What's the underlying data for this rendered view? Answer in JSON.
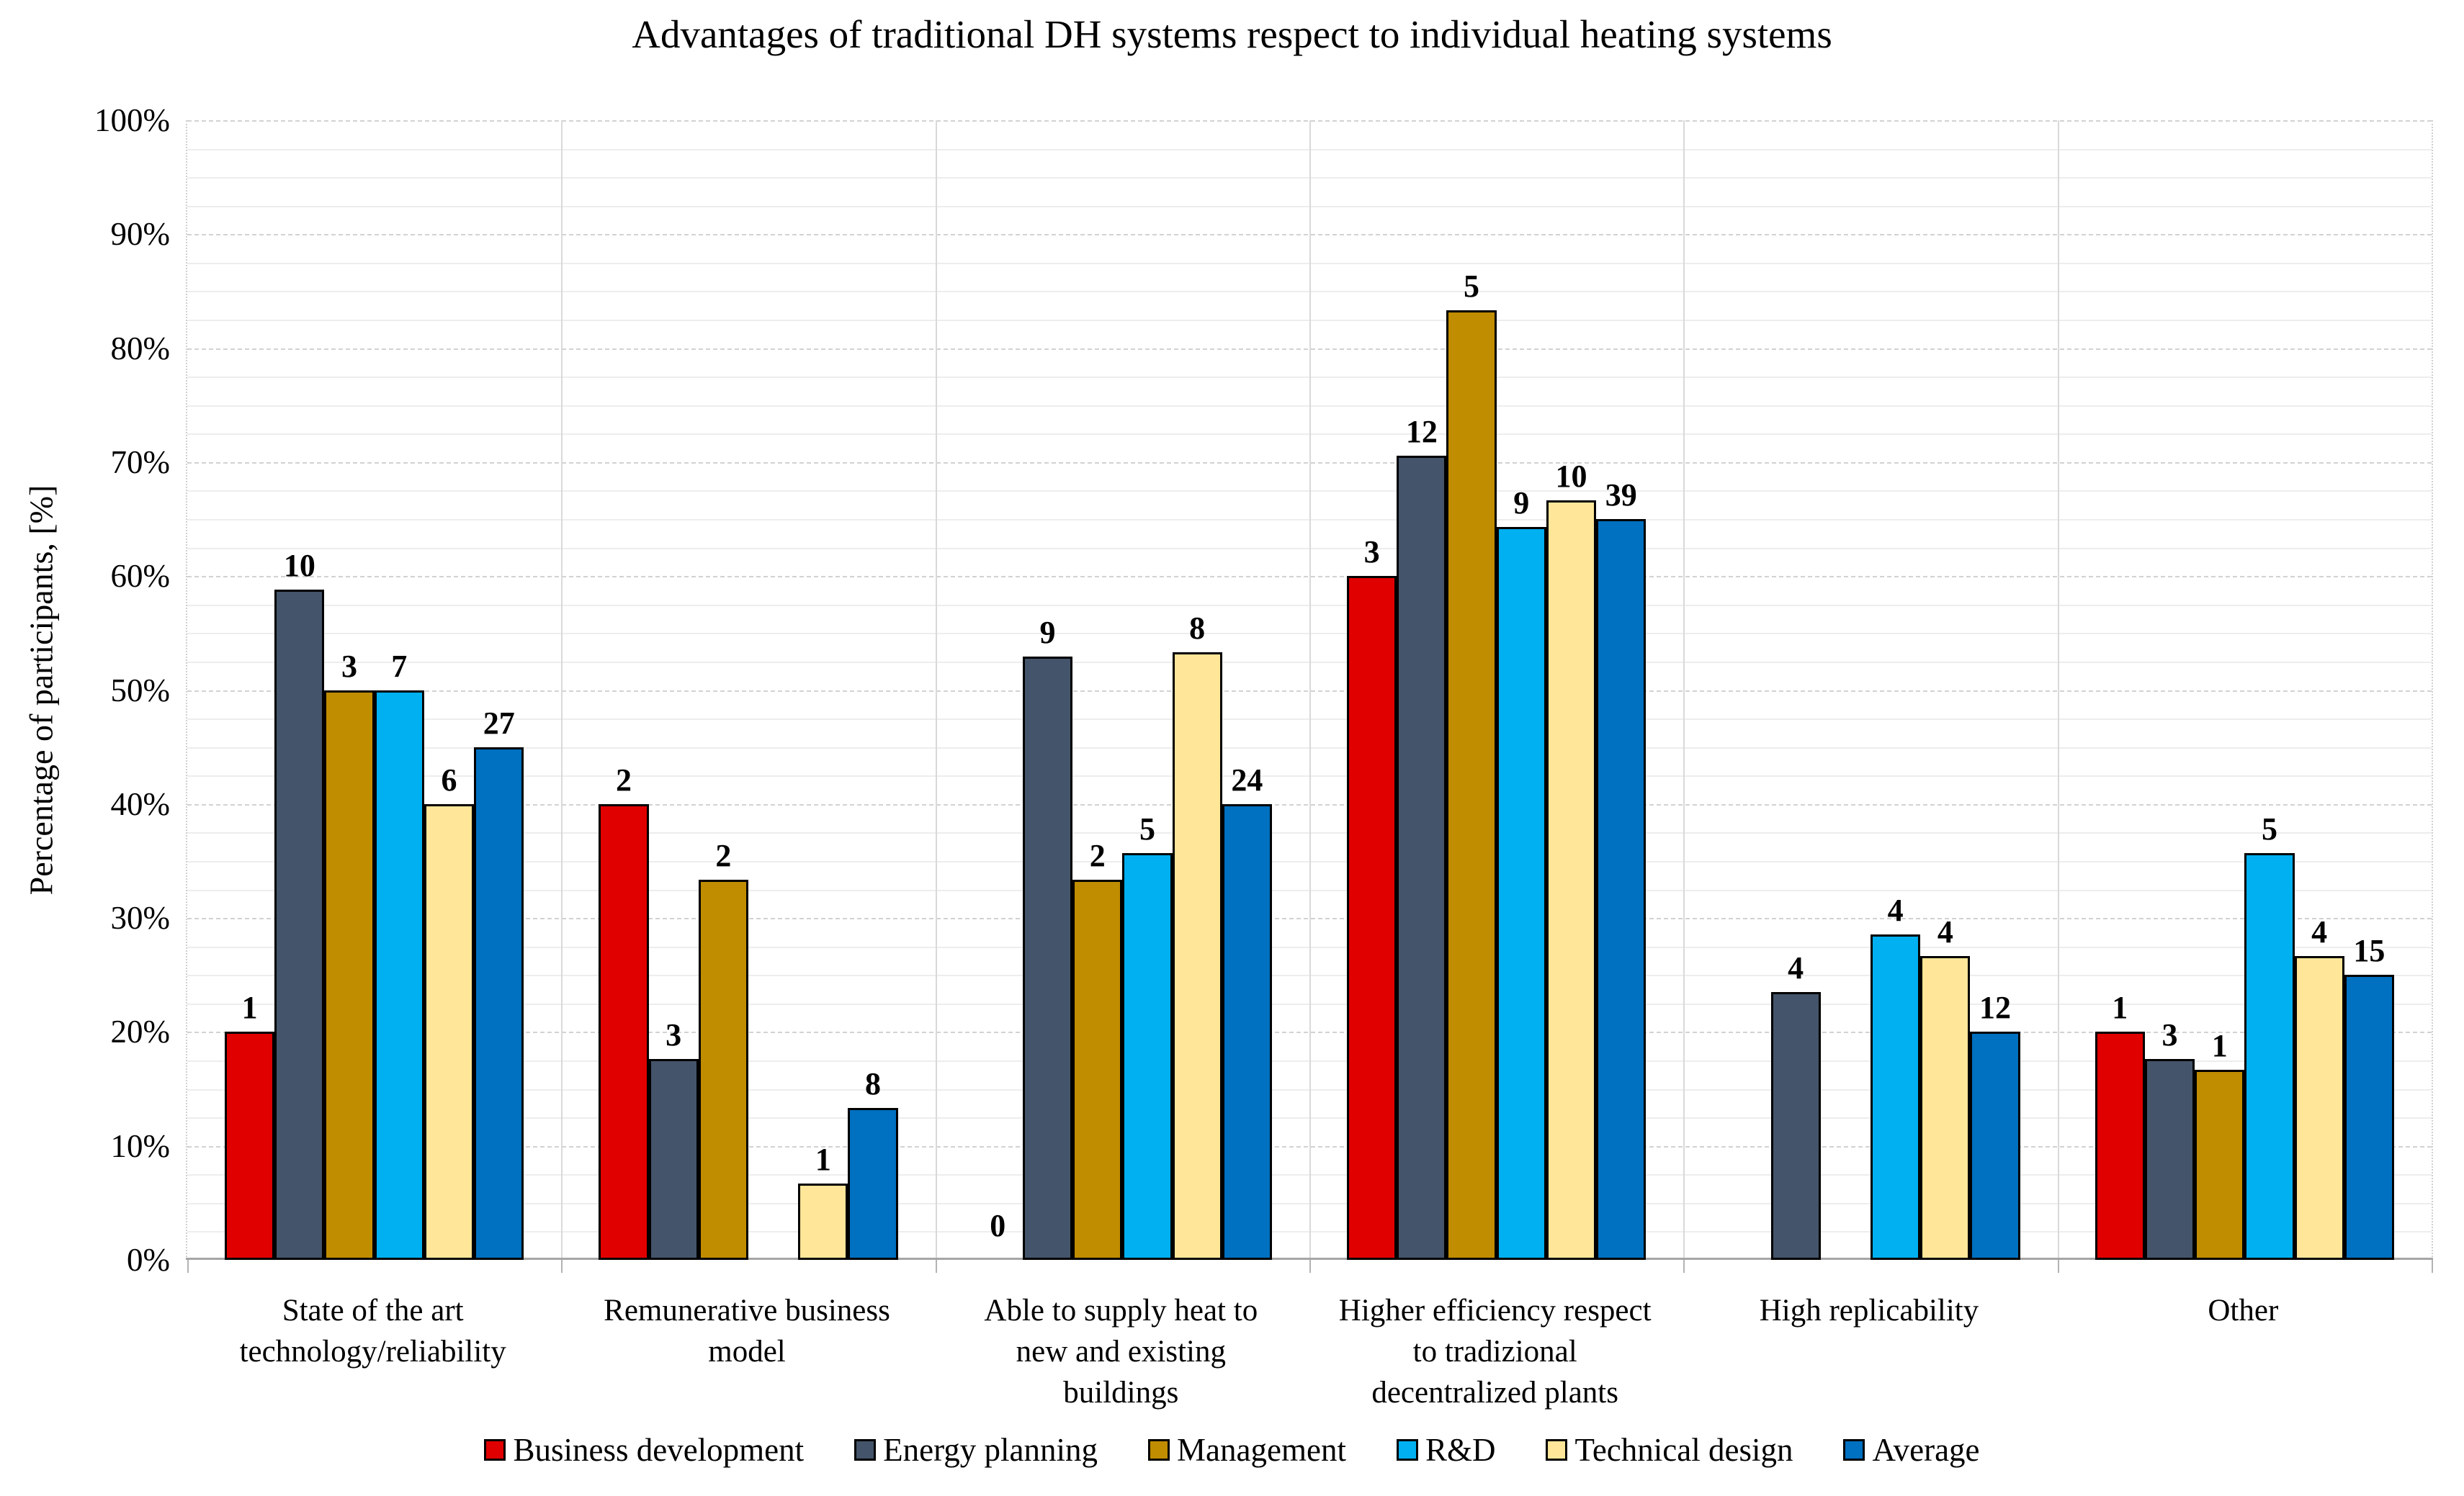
{
  "chart_data": {
    "type": "bar",
    "title": "Advantages of traditional DH systems respect to individual heating systems",
    "ylabel": "Percentage of participants, [%]",
    "xlabel": "",
    "ylim": [
      0,
      100
    ],
    "y_major_step_percent": 10,
    "y_minor_step_percent": 2.5,
    "y_tick_labels": [
      "0%",
      "10%",
      "20%",
      "30%",
      "40%",
      "50%",
      "60%",
      "70%",
      "80%",
      "90%",
      "100%"
    ],
    "grid": "horizontal major dashed gridlines every 10%, minor light gridlines every 2.5%, vertical category separators",
    "legend_position": "bottom",
    "categories": [
      "State of the art\ntechnology/reliability",
      "Remunerative business\nmodel",
      "Able to supply heat to\nnew and existing\nbuildings",
      "Higher efficiency respect\nto tradizional\ndecentralized plants",
      "High replicability",
      "Other"
    ],
    "series": [
      {
        "name": "Business development",
        "color": "#E00000",
        "count_labels": [
          "1",
          "2",
          "0",
          "3",
          "",
          "1"
        ],
        "percent_values": [
          20,
          40,
          0,
          60,
          0,
          20
        ]
      },
      {
        "name": "Energy planning",
        "color": "#44546A",
        "count_labels": [
          "10",
          "3",
          "9",
          "12",
          "4",
          "3"
        ],
        "percent_values": [
          58.82,
          17.65,
          52.94,
          70.59,
          23.53,
          17.65
        ]
      },
      {
        "name": "Management",
        "color": "#C08C00",
        "count_labels": [
          "3",
          "2",
          "2",
          "5",
          "",
          "1"
        ],
        "percent_values": [
          50,
          33.33,
          33.33,
          83.33,
          0,
          16.67
        ]
      },
      {
        "name": "R&D",
        "color": "#00B0F0",
        "count_labels": [
          "7",
          "",
          "5",
          "9",
          "4",
          "5"
        ],
        "percent_values": [
          50,
          0,
          35.71,
          64.29,
          28.57,
          35.71
        ]
      },
      {
        "name": "Technical design",
        "color": "#FFE699",
        "count_labels": [
          "6",
          "1",
          "8",
          "10",
          "4",
          "4"
        ],
        "percent_values": [
          40,
          6.67,
          53.33,
          66.67,
          26.67,
          26.67
        ]
      },
      {
        "name": "Average",
        "color": "#0070C0",
        "count_labels": [
          "27",
          "8",
          "24",
          "39",
          "12",
          "15"
        ],
        "percent_values": [
          45,
          13.33,
          40,
          65,
          20,
          25
        ]
      }
    ]
  },
  "layout_colors": {
    "gridline_minor": "#ededed",
    "gridline_major": "#d2d2d2",
    "axis_line": "#a6a6a6",
    "bar_border": "#000000",
    "text": "#000000"
  }
}
